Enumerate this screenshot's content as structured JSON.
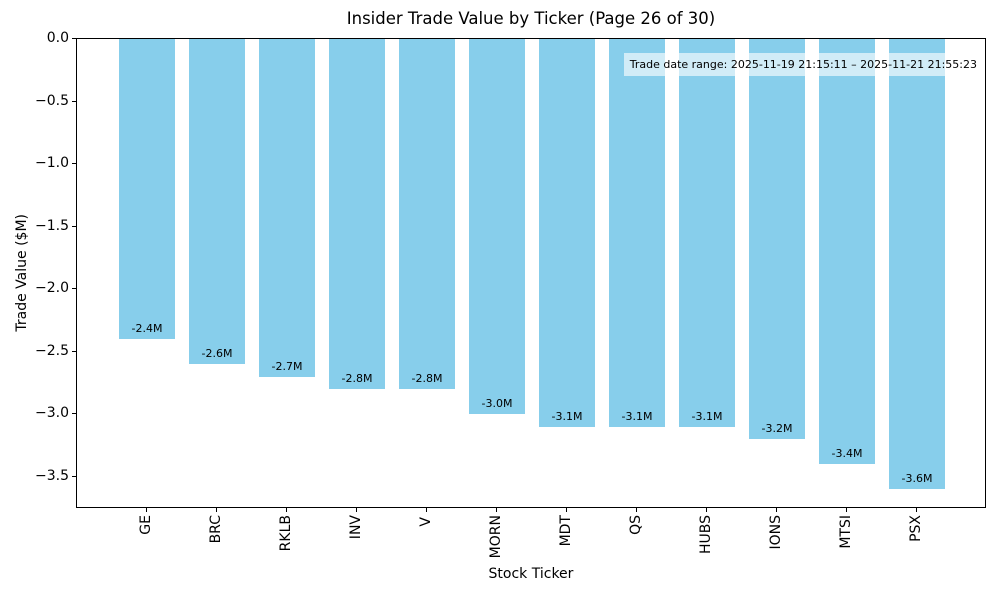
{
  "chart_data": {
    "type": "bar",
    "title": "Insider Trade Value by Ticker (Page 26 of 30)",
    "xlabel": "Stock Ticker",
    "ylabel": "Trade Value ($M)",
    "categories": [
      "GE",
      "BRC",
      "RKLB",
      "INV",
      "V",
      "MORN",
      "MDT",
      "QS",
      "HUBS",
      "IONS",
      "MTSI",
      "PSX"
    ],
    "values": [
      -2.4,
      -2.6,
      -2.7,
      -2.8,
      -2.8,
      -3.0,
      -3.1,
      -3.1,
      -3.1,
      -3.2,
      -3.4,
      -3.6
    ],
    "bar_labels": [
      "-2.4M",
      "-2.6M",
      "-2.7M",
      "-2.8M",
      "-2.8M",
      "-3.0M",
      "-3.1M",
      "-3.1M",
      "-3.1M",
      "-3.2M",
      "-3.4M",
      "-3.6M"
    ],
    "annotation": "Trade date range: 2025-11-19 21:15:11 – 2025-11-21 21:55:23",
    "yticks": [
      0,
      -0.5,
      -1.0,
      -1.5,
      -2.0,
      -2.5,
      -3.0,
      -3.5
    ],
    "ytick_labels": [
      "0.0",
      "−0.5",
      "−1.0",
      "−1.5",
      "−2.0",
      "−2.5",
      "−3.0",
      "−3.5"
    ],
    "ylim": [
      -3.76,
      0
    ],
    "grid": false,
    "legend": null,
    "colors": {
      "bar": "#87CEEB",
      "annotation_bg": "#FFFFFF",
      "text": "#000000",
      "spine": "#000000"
    }
  }
}
